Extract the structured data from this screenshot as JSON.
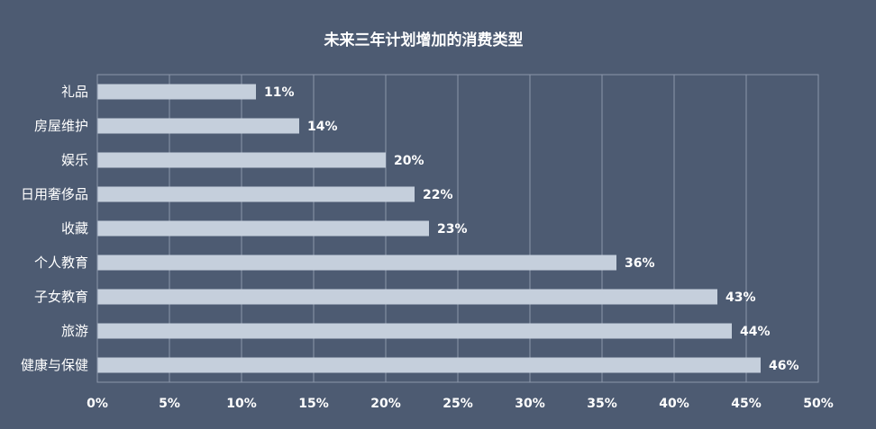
{
  "chart_data": {
    "type": "bar",
    "orientation": "horizontal",
    "title": "未来三年计划增加的消费类型",
    "xlabel": "",
    "ylabel": "",
    "xlim": [
      0,
      50
    ],
    "tick_step": 5,
    "tick_labels": [
      "0%",
      "5%",
      "10%",
      "15%",
      "20%",
      "25%",
      "30%",
      "35%",
      "40%",
      "45%",
      "50%"
    ],
    "grid": true,
    "legend": "none",
    "categories": [
      "礼品",
      "房屋维护",
      "娱乐",
      "日用奢侈品",
      "收藏",
      "个人教育",
      "子女教育",
      "旅游",
      "健康与保健"
    ],
    "values": [
      11,
      14,
      20,
      22,
      23,
      36,
      43,
      44,
      46
    ],
    "data_labels": [
      "11%",
      "14%",
      "20%",
      "22%",
      "23%",
      "36%",
      "43%",
      "44%",
      "46%"
    ],
    "colors": {
      "background": "#4d5b72",
      "bar": "#c5cfdc",
      "grid": "#8c97ab",
      "text": "#ffffff"
    }
  }
}
